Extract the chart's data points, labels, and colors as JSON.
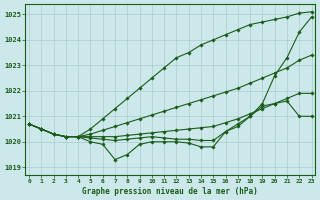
{
  "title": "Graphe pression niveau de la mer (hPa)",
  "hours": [
    0,
    1,
    2,
    3,
    4,
    5,
    6,
    7,
    8,
    9,
    10,
    11,
    12,
    13,
    14,
    15,
    16,
    17,
    18,
    19,
    20,
    21,
    22,
    23
  ],
  "ylim": [
    1018.7,
    1025.4
  ],
  "yticks": [
    1019,
    1020,
    1021,
    1022,
    1023,
    1024,
    1025
  ],
  "bg_color": "#cce8ea",
  "grid_color": "#aacccc",
  "line_color": "#1a5c1a",
  "series": [
    [
      1020.7,
      1020.5,
      1020.3,
      1020.2,
      1020.2,
      1020.0,
      1019.9,
      1019.3,
      1019.5,
      1019.9,
      1020.0,
      1020.0,
      1020.0,
      1019.95,
      1019.8,
      1019.8,
      1020.4,
      1020.6,
      1021.0,
      1021.5,
      1022.6,
      1023.3,
      1024.3,
      1024.9
    ],
    [
      1020.7,
      1020.5,
      1020.3,
      1020.2,
      1020.2,
      1020.15,
      1020.1,
      1020.05,
      1020.1,
      1020.15,
      1020.2,
      1020.15,
      1020.1,
      1020.1,
      1020.05,
      1020.05,
      1020.4,
      1020.7,
      1021.0,
      1021.4,
      1021.5,
      1021.6,
      1021.0,
      1021.0
    ],
    [
      1020.7,
      1020.5,
      1020.3,
      1020.2,
      1020.2,
      1020.2,
      1020.2,
      1020.2,
      1020.25,
      1020.3,
      1020.35,
      1020.4,
      1020.45,
      1020.5,
      1020.55,
      1020.6,
      1020.75,
      1020.9,
      1021.1,
      1021.3,
      1021.5,
      1021.7,
      1021.9,
      1021.9
    ],
    [
      1020.7,
      1020.5,
      1020.3,
      1020.2,
      1020.2,
      1020.3,
      1020.45,
      1020.6,
      1020.75,
      1020.9,
      1021.05,
      1021.2,
      1021.35,
      1021.5,
      1021.65,
      1021.8,
      1021.95,
      1022.1,
      1022.3,
      1022.5,
      1022.7,
      1022.9,
      1023.2,
      1023.4
    ],
    [
      1020.7,
      1020.5,
      1020.3,
      1020.2,
      1020.2,
      1020.5,
      1020.9,
      1021.3,
      1021.7,
      1022.1,
      1022.5,
      1022.9,
      1023.3,
      1023.5,
      1023.8,
      1024.0,
      1024.2,
      1024.4,
      1024.6,
      1024.7,
      1024.8,
      1024.9,
      1025.05,
      1025.1
    ]
  ],
  "xtick_labels": [
    "0",
    "1",
    "2",
    "3",
    "4",
    "5",
    "6",
    "7",
    "8",
    "9",
    "10",
    "11",
    "12",
    "13",
    "14",
    "15",
    "16",
    "17",
    "18",
    "19",
    "20",
    "21",
    "22",
    "23"
  ]
}
